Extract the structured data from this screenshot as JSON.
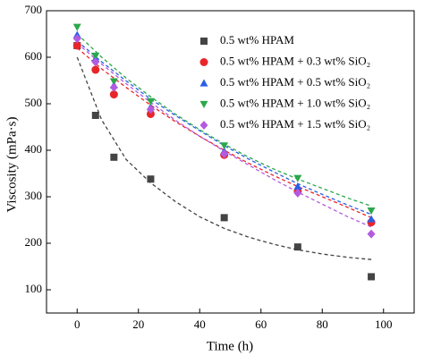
{
  "chart_data": {
    "type": "scatter",
    "x_label": "Time (h)",
    "y_label": "Viscosity (mPa·s)",
    "xlim": [
      -10,
      110
    ],
    "xticks": [
      0,
      20,
      40,
      60,
      80,
      100
    ],
    "ylim": [
      50,
      700
    ],
    "yticks": [
      100,
      200,
      300,
      400,
      500,
      600,
      700
    ],
    "legend": "upper right",
    "series": [
      {
        "name": "0.5 wt% HPAM",
        "color": "#444444",
        "marker": "square",
        "x": [
          0,
          6,
          12,
          24,
          48,
          72,
          96
        ],
        "values": [
          625,
          475,
          385,
          338,
          255,
          192,
          128
        ]
      },
      {
        "name": "0.5 wt% HPAM + 0.3 wt% SiO₂",
        "color": "#e8262a",
        "marker": "circle",
        "x": [
          0,
          6,
          12,
          24,
          48,
          72,
          96
        ],
        "values": [
          625,
          573,
          520,
          478,
          390,
          312,
          245
        ]
      },
      {
        "name": "0.5 wt% HPAM + 0.5 wt% SiO₂",
        "color": "#2a5ee8",
        "marker": "triangle-up",
        "x": [
          0,
          6,
          12,
          24,
          48,
          72,
          96
        ],
        "values": [
          648,
          597,
          540,
          493,
          398,
          322,
          252
        ]
      },
      {
        "name": "0.5 wt% HPAM + 1.0 wt% SiO₂",
        "color": "#2aa84a",
        "marker": "triangle-down",
        "x": [
          0,
          6,
          12,
          24,
          48,
          72,
          96
        ],
        "values": [
          665,
          603,
          548,
          505,
          410,
          340,
          270
        ]
      },
      {
        "name": "0.5 wt% HPAM + 1.5 wt% SiO₂",
        "color": "#b35be0",
        "marker": "diamond",
        "x": [
          0,
          6,
          12,
          24,
          48,
          72,
          96
        ],
        "values": [
          640,
          590,
          535,
          488,
          392,
          308,
          220
        ]
      }
    ],
    "fits": [
      {
        "color": "#444444",
        "x": [
          0,
          8,
          16,
          24,
          32,
          40,
          48,
          56,
          64,
          72,
          80,
          88,
          96
        ],
        "values": [
          600,
          465,
          380,
          330,
          290,
          257,
          232,
          213,
          198,
          186,
          177,
          170,
          165
        ]
      },
      {
        "color": "#e8262a",
        "x": [
          0,
          8,
          16,
          24,
          32,
          40,
          48,
          56,
          64,
          72,
          80,
          88,
          96
        ],
        "values": [
          620,
          575,
          535,
          497,
          462,
          430,
          400,
          372,
          346,
          322,
          300,
          278,
          255
        ]
      },
      {
        "color": "#2a5ee8",
        "x": [
          0,
          8,
          16,
          24,
          32,
          40,
          48,
          56,
          64,
          72,
          80,
          88,
          96
        ],
        "values": [
          635,
          590,
          549,
          510,
          475,
          442,
          410,
          381,
          354,
          328,
          305,
          283,
          262
        ]
      },
      {
        "color": "#2aa84a",
        "x": [
          0,
          8,
          16,
          24,
          32,
          40,
          48,
          56,
          64,
          72,
          80,
          88,
          96
        ],
        "values": [
          650,
          600,
          555,
          515,
          478,
          444,
          413,
          385,
          360,
          338,
          318,
          298,
          280
        ]
      },
      {
        "color": "#b35be0",
        "x": [
          0,
          8,
          16,
          24,
          32,
          40,
          48,
          56,
          64,
          72,
          80,
          88,
          96
        ],
        "values": [
          630,
          585,
          543,
          503,
          465,
          430,
          398,
          368,
          338,
          310,
          284,
          258,
          235
        ]
      }
    ]
  }
}
